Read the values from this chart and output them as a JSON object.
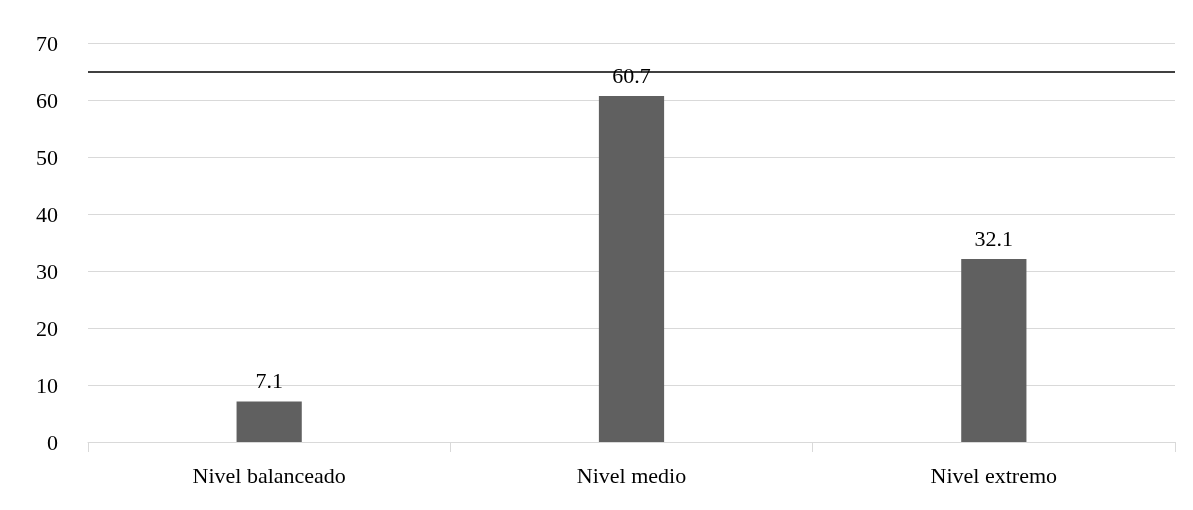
{
  "chart_data": {
    "type": "bar",
    "categories": [
      "Nivel balanceado",
      "Nivel medio",
      "Nivel extremo"
    ],
    "values": [
      7.1,
      60.7,
      32.1
    ],
    "color": "#606060",
    "ylim": [
      0,
      70
    ],
    "yticks": [
      0,
      10,
      20,
      30,
      40,
      50,
      60,
      70
    ],
    "grid": "y",
    "data_labels": true,
    "ref_lines": [
      {
        "axis": "y",
        "value": 65,
        "color": "#000000",
        "line_style": "solid"
      }
    ]
  }
}
